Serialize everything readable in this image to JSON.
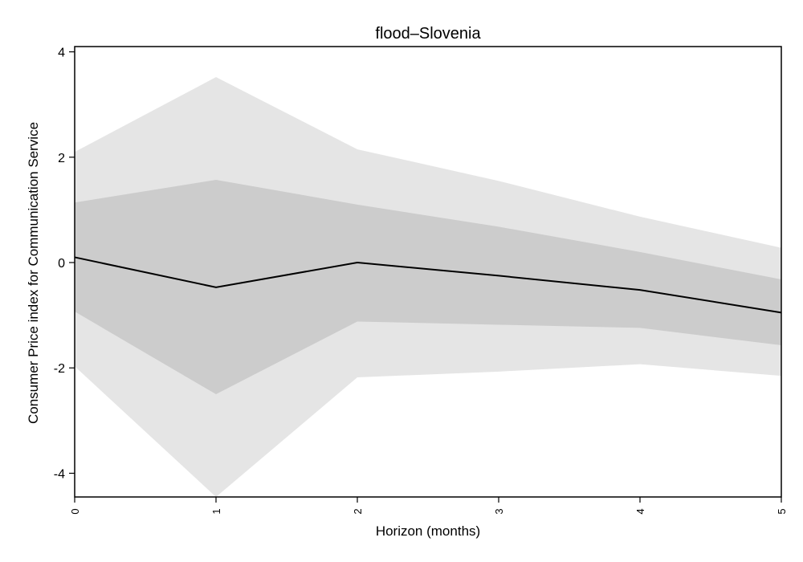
{
  "chart_data": {
    "type": "area",
    "title": "flood–Slovenia",
    "xlabel": "Horizon (months)",
    "ylabel": "Consumer Price index for Communication Service",
    "x": [
      0,
      1,
      2,
      3,
      4,
      5
    ],
    "xlim": [
      0,
      5
    ],
    "ylim": [
      -4.45,
      4.1
    ],
    "xticks": [
      "0",
      "1",
      "2",
      "3",
      "4",
      "5"
    ],
    "yticks": [
      -4,
      -2,
      0,
      2,
      4
    ],
    "grid": false,
    "series": [
      {
        "role": "outer band upper",
        "values": [
          2.1,
          3.52,
          2.15,
          1.55,
          0.87,
          0.28
        ]
      },
      {
        "role": "outer band lower",
        "values": [
          -1.97,
          -4.45,
          -2.18,
          -2.07,
          -1.93,
          -2.15
        ]
      },
      {
        "role": "inner band upper",
        "values": [
          1.14,
          1.57,
          1.1,
          0.68,
          0.2,
          -0.32
        ]
      },
      {
        "role": "inner band lower",
        "values": [
          -0.93,
          -2.5,
          -1.12,
          -1.18,
          -1.24,
          -1.57
        ]
      },
      {
        "role": "point estimate",
        "values": [
          0.1,
          -0.47,
          0.0,
          -0.25,
          -0.52,
          -0.95
        ]
      }
    ],
    "colors": {
      "outer_band": "#e5e5e5",
      "inner_band": "#cccccc",
      "line": "#000000",
      "frame": "#000000"
    }
  }
}
